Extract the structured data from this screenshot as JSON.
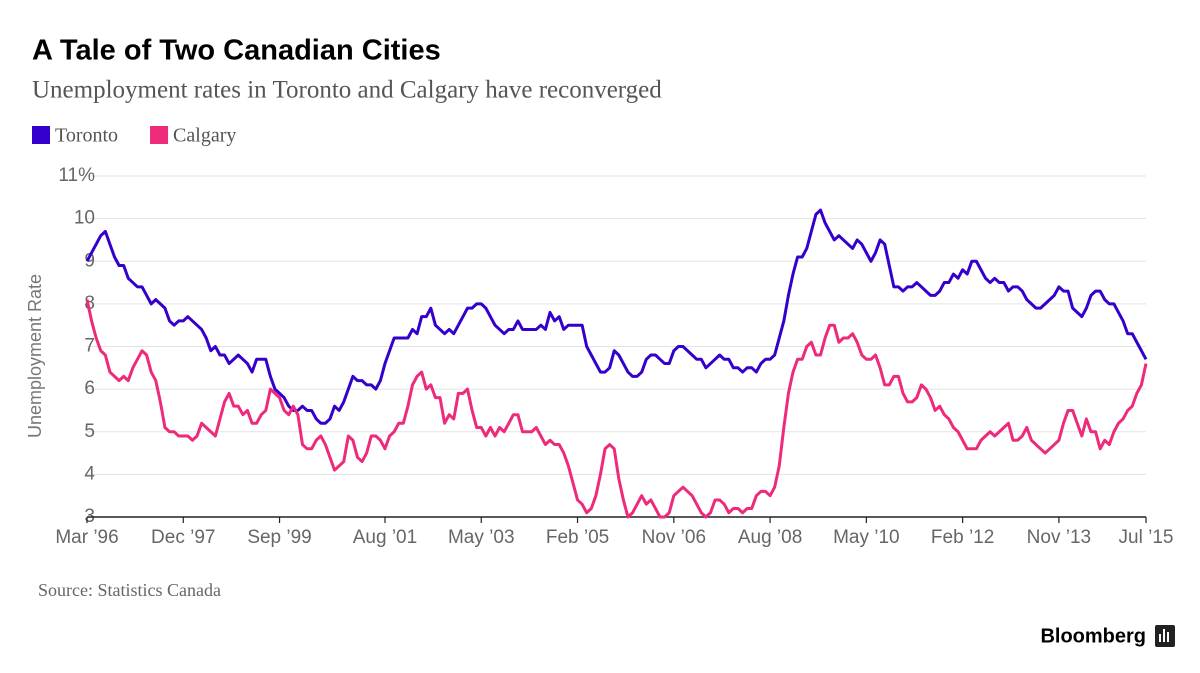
{
  "chart_data": {
    "type": "line",
    "title": "A Tale of Two Canadian Cities",
    "subtitle": "Unemployment rates in Toronto and Calgary have reconverged",
    "y_label": "Unemployment Rate",
    "source": "Source: Statistics Canada",
    "brand": "Bloomberg",
    "ylim": [
      3,
      11
    ],
    "yticks": [
      3,
      4,
      5,
      6,
      7,
      8,
      9,
      10,
      {
        "value": 11,
        "label": "11%"
      }
    ],
    "grid": true,
    "categories": [
      "Mar ’96",
      null,
      null,
      null,
      null,
      null,
      null,
      null,
      null,
      null,
      null,
      null,
      null,
      null,
      null,
      null,
      null,
      null,
      null,
      null,
      null,
      "Dec ’97",
      null,
      null,
      null,
      null,
      null,
      null,
      null,
      null,
      null,
      null,
      null,
      null,
      null,
      null,
      null,
      null,
      null,
      null,
      null,
      null,
      "Sep ’99",
      null,
      null,
      null,
      null,
      null,
      null,
      null,
      null,
      null,
      null,
      null,
      null,
      null,
      null,
      null,
      null,
      null,
      null,
      null,
      null,
      null,
      null,
      "Aug ’01",
      null,
      null,
      null,
      null,
      null,
      null,
      null,
      null,
      null,
      null,
      null,
      null,
      null,
      null,
      null,
      null,
      null,
      null,
      null,
      null,
      "May ’03",
      null,
      null,
      null,
      null,
      null,
      null,
      null,
      null,
      null,
      null,
      null,
      null,
      null,
      null,
      null,
      null,
      null,
      null,
      null,
      null,
      "Feb ’05",
      null,
      null,
      null,
      null,
      null,
      null,
      null,
      null,
      null,
      null,
      null,
      null,
      null,
      null,
      null,
      null,
      null,
      null,
      null,
      null,
      "Nov ’06",
      null,
      null,
      null,
      null,
      null,
      null,
      null,
      null,
      null,
      null,
      null,
      null,
      null,
      null,
      null,
      null,
      null,
      null,
      null,
      null,
      "Aug ’08",
      null,
      null,
      null,
      null,
      null,
      null,
      null,
      null,
      null,
      null,
      null,
      null,
      null,
      null,
      null,
      null,
      null,
      null,
      null,
      null,
      "May ’10",
      null,
      null,
      null,
      null,
      null,
      null,
      null,
      null,
      null,
      null,
      null,
      null,
      null,
      null,
      null,
      null,
      null,
      null,
      null,
      null,
      "Feb ’12",
      null,
      null,
      null,
      null,
      null,
      null,
      null,
      null,
      null,
      null,
      null,
      null,
      null,
      null,
      null,
      null,
      null,
      null,
      null,
      null,
      "Nov ’13",
      null,
      null,
      null,
      null,
      null,
      null,
      null,
      null,
      null,
      null,
      null,
      null,
      null,
      null,
      null,
      null,
      null,
      null,
      "Jul ’15"
    ],
    "series": [
      {
        "name": "Toronto",
        "color": "#3300cc",
        "values": [
          9.0,
          9.2,
          9.4,
          9.6,
          9.7,
          9.4,
          9.1,
          8.9,
          8.9,
          8.6,
          8.5,
          8.4,
          8.4,
          8.2,
          8.0,
          8.1,
          8.0,
          7.9,
          7.6,
          7.5,
          7.6,
          7.6,
          7.7,
          7.6,
          7.5,
          7.4,
          7.2,
          6.9,
          7.0,
          6.8,
          6.8,
          6.6,
          6.7,
          6.8,
          6.7,
          6.6,
          6.4,
          6.7,
          6.7,
          6.7,
          6.3,
          6.0,
          5.9,
          5.8,
          5.6,
          5.5,
          5.5,
          5.6,
          5.5,
          5.5,
          5.3,
          5.2,
          5.2,
          5.3,
          5.6,
          5.5,
          5.7,
          6.0,
          6.3,
          6.2,
          6.2,
          6.1,
          6.1,
          6.0,
          6.2,
          6.6,
          6.9,
          7.2,
          7.2,
          7.2,
          7.2,
          7.4,
          7.3,
          7.7,
          7.7,
          7.9,
          7.5,
          7.4,
          7.3,
          7.4,
          7.3,
          7.5,
          7.7,
          7.9,
          7.9,
          8.0,
          8.0,
          7.9,
          7.7,
          7.5,
          7.4,
          7.3,
          7.4,
          7.4,
          7.6,
          7.4,
          7.4,
          7.4,
          7.4,
          7.5,
          7.4,
          7.8,
          7.6,
          7.7,
          7.4,
          7.5,
          7.5,
          7.5,
          7.5,
          7.0,
          6.8,
          6.6,
          6.4,
          6.4,
          6.5,
          6.9,
          6.8,
          6.6,
          6.4,
          6.3,
          6.3,
          6.4,
          6.7,
          6.8,
          6.8,
          6.7,
          6.6,
          6.6,
          6.9,
          7.0,
          7.0,
          6.9,
          6.8,
          6.7,
          6.7,
          6.5,
          6.6,
          6.7,
          6.8,
          6.7,
          6.7,
          6.5,
          6.5,
          6.4,
          6.5,
          6.5,
          6.4,
          6.6,
          6.7,
          6.7,
          6.8,
          7.2,
          7.6,
          8.2,
          8.7,
          9.1,
          9.1,
          9.3,
          9.7,
          10.1,
          10.2,
          9.9,
          9.7,
          9.5,
          9.6,
          9.5,
          9.4,
          9.3,
          9.5,
          9.4,
          9.2,
          9.0,
          9.2,
          9.5,
          9.4,
          8.9,
          8.4,
          8.4,
          8.3,
          8.4,
          8.4,
          8.5,
          8.4,
          8.3,
          8.2,
          8.2,
          8.3,
          8.5,
          8.5,
          8.7,
          8.6,
          8.8,
          8.7,
          9.0,
          9.0,
          8.8,
          8.6,
          8.5,
          8.6,
          8.5,
          8.5,
          8.3,
          8.4,
          8.4,
          8.3,
          8.1,
          8.0,
          7.9,
          7.9,
          8.0,
          8.1,
          8.2,
          8.4,
          8.3,
          8.3,
          7.9,
          7.8,
          7.7,
          7.9,
          8.2,
          8.3,
          8.3,
          8.1,
          8.0,
          8.0,
          7.8,
          7.6,
          7.3,
          7.3,
          7.1,
          6.9,
          6.7
        ]
      },
      {
        "name": "Calgary",
        "color": "#ee2a7b",
        "values": [
          8.1,
          7.6,
          7.2,
          6.9,
          6.8,
          6.4,
          6.3,
          6.2,
          6.3,
          6.2,
          6.5,
          6.7,
          6.9,
          6.8,
          6.4,
          6.2,
          5.7,
          5.1,
          5.0,
          5.0,
          4.9,
          4.9,
          4.9,
          4.8,
          4.9,
          5.2,
          5.1,
          5.0,
          4.9,
          5.3,
          5.7,
          5.9,
          5.6,
          5.6,
          5.4,
          5.5,
          5.2,
          5.2,
          5.4,
          5.5,
          6.0,
          5.9,
          5.8,
          5.5,
          5.4,
          5.6,
          5.4,
          4.7,
          4.6,
          4.6,
          4.8,
          4.9,
          4.7,
          4.4,
          4.1,
          4.2,
          4.3,
          4.9,
          4.8,
          4.4,
          4.3,
          4.5,
          4.9,
          4.9,
          4.8,
          4.6,
          4.9,
          5.0,
          5.2,
          5.2,
          5.6,
          6.1,
          6.3,
          6.4,
          6.0,
          6.1,
          5.8,
          5.8,
          5.2,
          5.4,
          5.3,
          5.9,
          5.9,
          6.0,
          5.5,
          5.1,
          5.1,
          4.9,
          5.1,
          4.9,
          5.1,
          5.0,
          5.2,
          5.4,
          5.4,
          5.0,
          5.0,
          5.0,
          5.1,
          4.9,
          4.7,
          4.8,
          4.7,
          4.7,
          4.5,
          4.2,
          3.8,
          3.4,
          3.3,
          3.1,
          3.2,
          3.5,
          4.0,
          4.6,
          4.7,
          4.6,
          3.9,
          3.4,
          3.0,
          3.1,
          3.3,
          3.5,
          3.3,
          3.4,
          3.2,
          3.0,
          3.0,
          3.1,
          3.5,
          3.6,
          3.7,
          3.6,
          3.5,
          3.3,
          3.1,
          3.0,
          3.1,
          3.4,
          3.4,
          3.3,
          3.1,
          3.2,
          3.2,
          3.1,
          3.2,
          3.2,
          3.5,
          3.6,
          3.6,
          3.5,
          3.7,
          4.2,
          5.1,
          5.9,
          6.4,
          6.7,
          6.7,
          7.0,
          7.1,
          6.8,
          6.8,
          7.2,
          7.5,
          7.5,
          7.1,
          7.2,
          7.2,
          7.3,
          7.1,
          6.8,
          6.7,
          6.7,
          6.8,
          6.5,
          6.1,
          6.1,
          6.3,
          6.3,
          5.9,
          5.7,
          5.7,
          5.8,
          6.1,
          6.0,
          5.8,
          5.5,
          5.6,
          5.4,
          5.3,
          5.1,
          5.0,
          4.8,
          4.6,
          4.6,
          4.6,
          4.8,
          4.9,
          5.0,
          4.9,
          5.0,
          5.1,
          5.2,
          4.8,
          4.8,
          4.9,
          5.1,
          4.8,
          4.7,
          4.6,
          4.5,
          4.6,
          4.7,
          4.8,
          5.2,
          5.5,
          5.5,
          5.2,
          4.9,
          5.3,
          5.0,
          5.0,
          4.6,
          4.8,
          4.7,
          5.0,
          5.2,
          5.3,
          5.5,
          5.6,
          5.9,
          6.1,
          6.6
        ]
      }
    ]
  }
}
